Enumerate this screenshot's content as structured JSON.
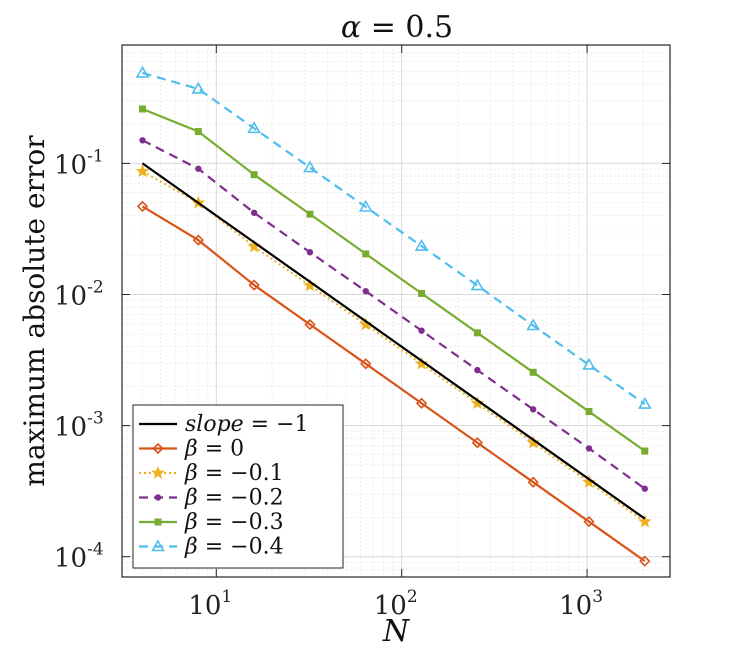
{
  "chart_data": {
    "type": "line",
    "title": "α = 0.5",
    "xlabel": "N",
    "ylabel": "maximum absolute error",
    "xscale": "log",
    "yscale": "log",
    "xlim": [
      3.1,
      2800
    ],
    "ylim": [
      7e-05,
      0.8
    ],
    "grid": true,
    "legend_position": "bottom-left",
    "x_ticks": [
      {
        "value": 10,
        "base": "10",
        "exp": "1"
      },
      {
        "value": 100,
        "base": "10",
        "exp": "2"
      },
      {
        "value": 1000,
        "base": "10",
        "exp": "3"
      }
    ],
    "y_ticks": [
      {
        "value": 0.0001,
        "base": "10",
        "exp": "-4"
      },
      {
        "value": 0.001,
        "base": "10",
        "exp": "-3"
      },
      {
        "value": 0.01,
        "base": "10",
        "exp": "-2"
      },
      {
        "value": 0.1,
        "base": "10",
        "exp": "-1"
      }
    ],
    "x": [
      4,
      8,
      16,
      32,
      64,
      128,
      256,
      512,
      1024,
      2048
    ],
    "series": [
      {
        "name": "slope = −1",
        "label_var": "slope",
        "label_rest": " = −1",
        "color": "#000000",
        "dash": "",
        "marker": "none",
        "x": [
          4,
          2048
        ],
        "values": [
          0.1,
          0.000195
        ]
      },
      {
        "name": "β = 0",
        "label_var": "β",
        "label_rest": " = 0",
        "color": "#D95319",
        "dash": "",
        "marker": "diamond",
        "values": [
          0.047,
          0.026,
          0.0118,
          0.0059,
          0.00296,
          0.00148,
          0.00074,
          0.00037,
          0.000185,
          9.25e-05
        ]
      },
      {
        "name": "β = −0.1",
        "label_var": "β",
        "label_rest": " = −0.1",
        "color": "#EDB120",
        "dash": "2,3",
        "marker": "star",
        "values": [
          0.087,
          0.05,
          0.0232,
          0.0117,
          0.0059,
          0.00296,
          0.00148,
          0.00074,
          0.00037,
          0.000185
        ]
      },
      {
        "name": "β = −0.2",
        "label_var": "β",
        "label_rest": " = −0.2",
        "color": "#7E2F8E",
        "dash": "9,6",
        "marker": "dot",
        "values": [
          0.15,
          0.091,
          0.042,
          0.021,
          0.0106,
          0.0053,
          0.00265,
          0.00133,
          0.00067,
          0.00033
        ]
      },
      {
        "name": "β = −0.3",
        "label_var": "β",
        "label_rest": " = −0.3",
        "color": "#77AC30",
        "dash": "",
        "marker": "square",
        "values": [
          0.26,
          0.175,
          0.082,
          0.041,
          0.0204,
          0.0102,
          0.0051,
          0.00255,
          0.00128,
          0.00064
        ]
      },
      {
        "name": "β = −0.4",
        "label_var": "β",
        "label_rest": " = −0.4",
        "color": "#4DBEEE",
        "dash": "9,6",
        "marker": "triangle",
        "values": [
          0.49,
          0.37,
          0.185,
          0.093,
          0.0465,
          0.0234,
          0.0117,
          0.0058,
          0.0029,
          0.00146
        ]
      }
    ]
  }
}
